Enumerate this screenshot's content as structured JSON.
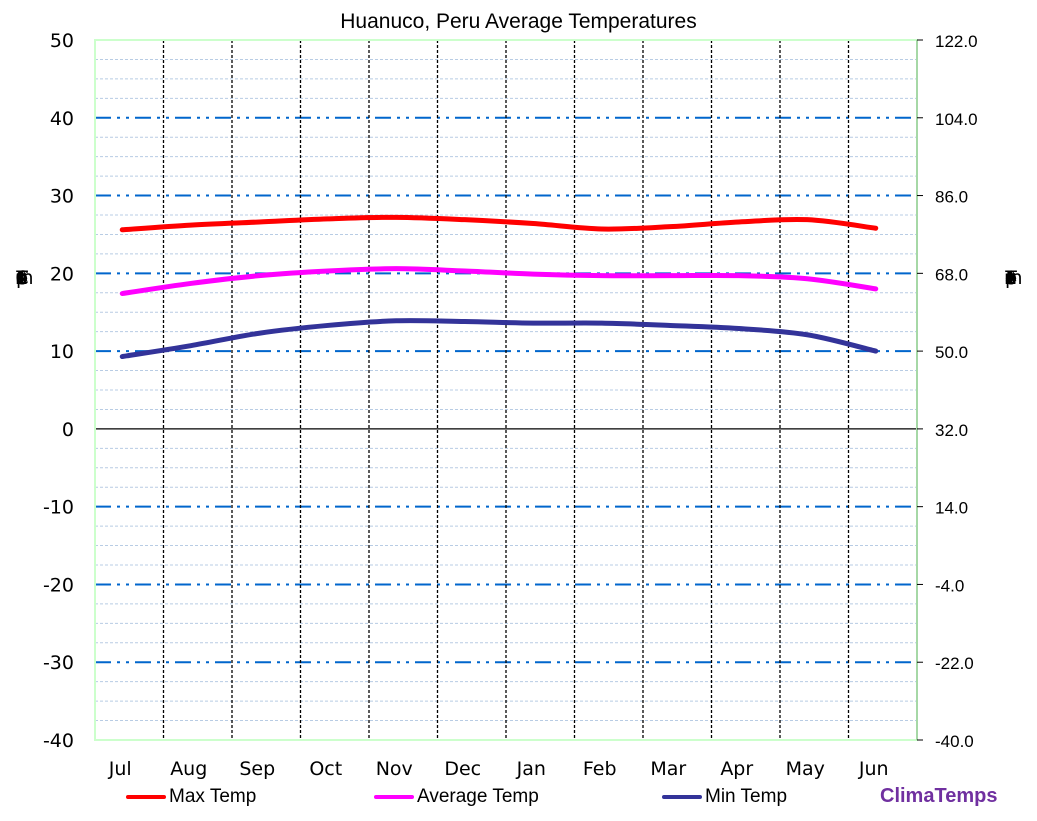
{
  "chart_data": {
    "type": "line",
    "title": "Huanuco, Peru Average Temperatures",
    "categories": [
      "Jul",
      "Aug",
      "Sep",
      "Oct",
      "Nov",
      "Dec",
      "Jan",
      "Feb",
      "Mar",
      "Apr",
      "May",
      "Jun"
    ],
    "series": [
      {
        "name": "Max Temp",
        "color": "#ff0000",
        "values": [
          25.6,
          26.2,
          26.6,
          27.0,
          27.2,
          26.9,
          26.4,
          25.7,
          26.0,
          26.6,
          26.9,
          25.8
        ]
      },
      {
        "name": "Average Temp",
        "color": "#ff00ff",
        "values": [
          17.4,
          18.7,
          19.7,
          20.3,
          20.6,
          20.3,
          19.9,
          19.7,
          19.7,
          19.7,
          19.3,
          18.0
        ]
      },
      {
        "name": "Min Temp",
        "color": "#333399",
        "values": [
          9.3,
          10.7,
          12.3,
          13.3,
          13.9,
          13.8,
          13.6,
          13.6,
          13.3,
          12.9,
          12.1,
          10.0
        ]
      }
    ],
    "xlabel": "",
    "ylabel": "Temperatures (°C)",
    "y2label": "Temperatures (°F)",
    "ylim": [
      -40,
      50
    ],
    "y2lim": [
      -40.0,
      122.0
    ],
    "yticks": [
      "50",
      "40",
      "30",
      "20",
      "10",
      "0",
      "-10",
      "-20",
      "-30",
      "-40"
    ],
    "y2ticks": [
      "122.0",
      "104.0",
      "86.0",
      "68.0",
      "50.0",
      "32.0",
      "14.0",
      "-4.0",
      "-22.0",
      "-40.0"
    ],
    "grid": true,
    "legend_position": "bottom"
  },
  "ylabel_chars": [
    "T",
    "e",
    "m",
    "p",
    "e",
    "r",
    "a",
    "t",
    "u",
    "r",
    "e",
    "s",
    " ",
    "(",
    "°",
    "C",
    ")"
  ],
  "y2label_chars": [
    "T",
    "e",
    "m",
    "p",
    "e",
    "r",
    "a",
    "t",
    "u",
    "r",
    "e",
    "s",
    " ",
    "(",
    "°",
    "F",
    ")"
  ],
  "brand": {
    "label": "ClimaTemps",
    "color": "#7030a0"
  }
}
